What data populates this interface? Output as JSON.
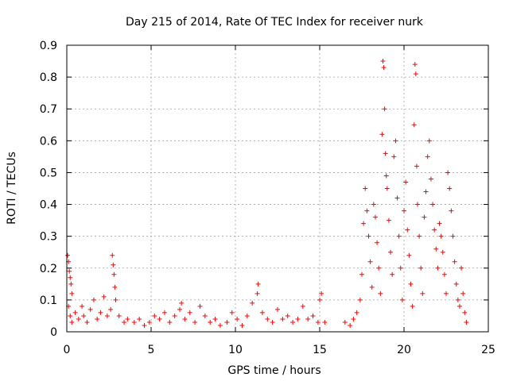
{
  "chart_data": {
    "type": "scatter",
    "title": "Day 215 of 2014, Rate Of TEC Index for receiver nurk",
    "xlabel": "GPS time / hours",
    "ylabel": "ROTI / TECUs",
    "xlim": [
      0,
      25
    ],
    "ylim": [
      0,
      0.9
    ],
    "x_ticks": [
      0,
      5,
      10,
      15,
      20,
      25
    ],
    "y_ticks": [
      0,
      0.1,
      0.2,
      0.3,
      0.4,
      0.5,
      0.6,
      0.7,
      0.8,
      0.9
    ],
    "grid": true,
    "marker": "+",
    "color": "#ff0000",
    "series": [
      {
        "points": [
          [
            0.05,
            0.24
          ],
          [
            0.1,
            0.22
          ],
          [
            0.15,
            0.19
          ],
          [
            0.2,
            0.17
          ],
          [
            0.25,
            0.15
          ],
          [
            0.3,
            0.12
          ],
          [
            0.1,
            0.08
          ],
          [
            0.2,
            0.05
          ],
          [
            0.3,
            0.03
          ],
          [
            0.5,
            0.06
          ],
          [
            0.7,
            0.04
          ],
          [
            0.9,
            0.08
          ],
          [
            1.0,
            0.05
          ],
          [
            1.2,
            0.03
          ],
          [
            1.4,
            0.07
          ],
          [
            1.6,
            0.1
          ],
          [
            1.8,
            0.04
          ],
          [
            2.0,
            0.06
          ],
          [
            2.2,
            0.11
          ],
          [
            2.4,
            0.05
          ],
          [
            2.6,
            0.07
          ],
          [
            2.7,
            0.24
          ],
          [
            2.75,
            0.21
          ],
          [
            2.8,
            0.18
          ],
          [
            2.85,
            0.14
          ],
          [
            2.9,
            0.1
          ],
          [
            3.1,
            0.05
          ],
          [
            3.4,
            0.03
          ],
          [
            3.6,
            0.04
          ],
          [
            4.0,
            0.03
          ],
          [
            4.3,
            0.04
          ],
          [
            4.6,
            0.02
          ],
          [
            4.9,
            0.03
          ],
          [
            5.2,
            0.05
          ],
          [
            5.5,
            0.04
          ],
          [
            5.8,
            0.06
          ],
          [
            6.1,
            0.03
          ],
          [
            6.4,
            0.05
          ],
          [
            6.7,
            0.07
          ],
          [
            6.8,
            0.09
          ],
          [
            7.0,
            0.04
          ],
          [
            7.3,
            0.06
          ],
          [
            7.6,
            0.03
          ],
          [
            7.9,
            0.08
          ],
          [
            8.2,
            0.05
          ],
          [
            8.5,
            0.03
          ],
          [
            8.8,
            0.04
          ],
          [
            9.1,
            0.02
          ],
          [
            9.5,
            0.03
          ],
          [
            9.8,
            0.06
          ],
          [
            10.1,
            0.04
          ],
          [
            10.4,
            0.02
          ],
          [
            10.7,
            0.05
          ],
          [
            11.0,
            0.09
          ],
          [
            11.3,
            0.12
          ],
          [
            11.35,
            0.15
          ],
          [
            11.6,
            0.06
          ],
          [
            11.9,
            0.04
          ],
          [
            12.2,
            0.03
          ],
          [
            12.5,
            0.07
          ],
          [
            12.8,
            0.04
          ],
          [
            13.1,
            0.05
          ],
          [
            13.4,
            0.03
          ],
          [
            13.7,
            0.04
          ],
          [
            14.0,
            0.08
          ],
          [
            14.3,
            0.04
          ],
          [
            14.6,
            0.05
          ],
          [
            14.9,
            0.03
          ],
          [
            15.0,
            0.1
          ],
          [
            15.1,
            0.12
          ],
          [
            15.3,
            0.03
          ],
          [
            16.5,
            0.03
          ],
          [
            16.8,
            0.02
          ],
          [
            17.0,
            0.04
          ],
          [
            17.2,
            0.06
          ],
          [
            17.4,
            0.1
          ],
          [
            17.5,
            0.18
          ],
          [
            17.6,
            0.34
          ],
          [
            17.7,
            0.45
          ],
          [
            17.8,
            0.38
          ],
          [
            17.9,
            0.3
          ],
          [
            18.0,
            0.22
          ],
          [
            18.1,
            0.14
          ],
          [
            18.2,
            0.4
          ],
          [
            18.3,
            0.36
          ],
          [
            18.4,
            0.28
          ],
          [
            18.5,
            0.2
          ],
          [
            18.6,
            0.12
          ],
          [
            18.7,
            0.62
          ],
          [
            18.75,
            0.85
          ],
          [
            18.8,
            0.83
          ],
          [
            18.85,
            0.7
          ],
          [
            18.9,
            0.56
          ],
          [
            18.95,
            0.49
          ],
          [
            19.0,
            0.45
          ],
          [
            19.1,
            0.35
          ],
          [
            19.2,
            0.25
          ],
          [
            19.3,
            0.18
          ],
          [
            19.4,
            0.55
          ],
          [
            19.5,
            0.6
          ],
          [
            19.6,
            0.42
          ],
          [
            19.7,
            0.3
          ],
          [
            19.8,
            0.2
          ],
          [
            19.9,
            0.1
          ],
          [
            20.0,
            0.38
          ],
          [
            20.1,
            0.47
          ],
          [
            20.2,
            0.32
          ],
          [
            20.3,
            0.24
          ],
          [
            20.4,
            0.15
          ],
          [
            20.5,
            0.08
          ],
          [
            20.6,
            0.65
          ],
          [
            20.65,
            0.84
          ],
          [
            20.7,
            0.81
          ],
          [
            20.75,
            0.52
          ],
          [
            20.8,
            0.4
          ],
          [
            20.9,
            0.3
          ],
          [
            21.0,
            0.2
          ],
          [
            21.1,
            0.12
          ],
          [
            21.2,
            0.36
          ],
          [
            21.3,
            0.44
          ],
          [
            21.4,
            0.55
          ],
          [
            21.5,
            0.6
          ],
          [
            21.6,
            0.48
          ],
          [
            21.7,
            0.4
          ],
          [
            21.8,
            0.32
          ],
          [
            21.9,
            0.26
          ],
          [
            22.0,
            0.2
          ],
          [
            22.1,
            0.34
          ],
          [
            22.2,
            0.3
          ],
          [
            22.3,
            0.25
          ],
          [
            22.4,
            0.18
          ],
          [
            22.5,
            0.12
          ],
          [
            22.6,
            0.5
          ],
          [
            22.7,
            0.45
          ],
          [
            22.8,
            0.38
          ],
          [
            22.9,
            0.3
          ],
          [
            23.0,
            0.22
          ],
          [
            23.1,
            0.15
          ],
          [
            23.2,
            0.1
          ],
          [
            23.3,
            0.08
          ],
          [
            23.4,
            0.2
          ],
          [
            23.5,
            0.12
          ],
          [
            23.6,
            0.06
          ],
          [
            23.7,
            0.03
          ]
        ]
      }
    ]
  }
}
